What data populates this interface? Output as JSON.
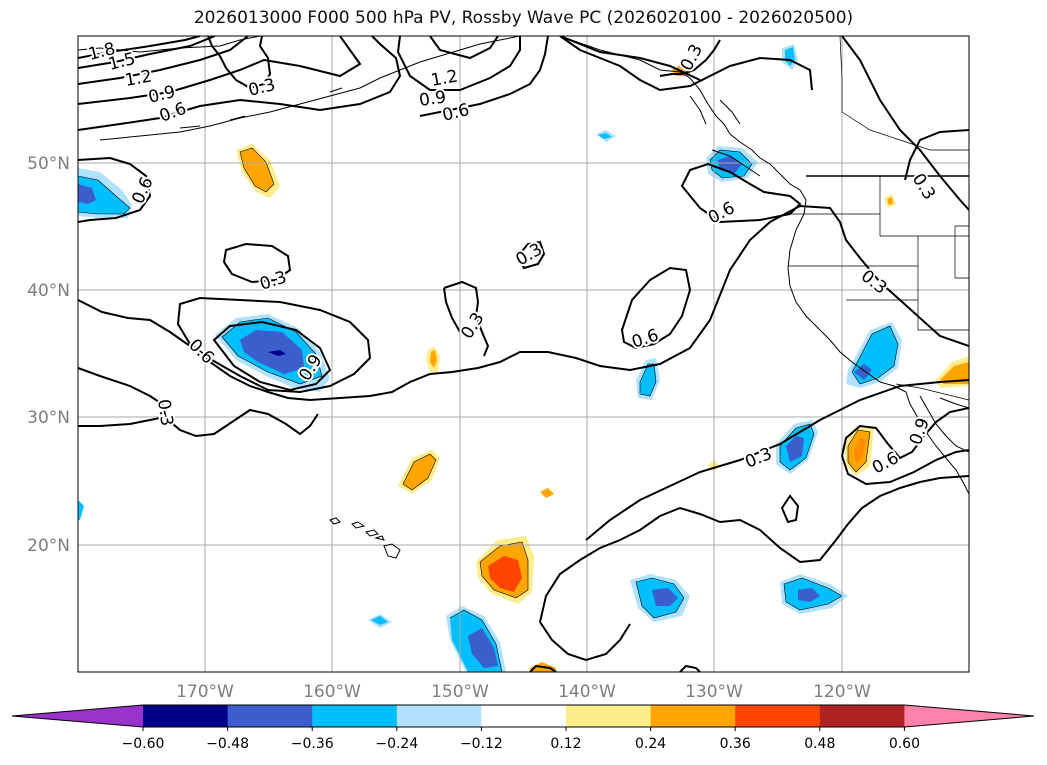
{
  "title": "2026013000 F000 500 hPa PV, Rossby Wave PC (2026020100 - 2026020500)",
  "axes": {
    "lon_labels": [
      "170°W",
      "160°W",
      "150°W",
      "140°W",
      "130°W",
      "120°W"
    ],
    "lat_labels": [
      "50°N",
      "40°N",
      "30°N",
      "20°N"
    ]
  },
  "contour_labels": [
    "1.8",
    "1.5",
    "1.2",
    "0.9",
    "0.6",
    "0.3",
    "1.2",
    "0.9",
    "0.6",
    "0.3",
    "0.3",
    "0.3",
    "0.3",
    "0.6",
    "0.6",
    "0.9",
    "0.3",
    "0.6",
    "0.6",
    "0.3",
    "0.6",
    "0.3",
    "0.9",
    "0.3"
  ],
  "colorbar": {
    "ticks": [
      "−0.60",
      "−0.48",
      "−0.36",
      "−0.24",
      "−0.12",
      "0.12",
      "0.24",
      "0.36",
      "0.48",
      "0.60"
    ],
    "colors": [
      "#9933cc",
      "#00008b",
      "#3a5fcd",
      "#00bfff",
      "#b0e2ff",
      "#ffffff",
      "#ffec8b",
      "#ffa500",
      "#ff4500",
      "#b22222",
      "#ff82ab"
    ]
  }
}
